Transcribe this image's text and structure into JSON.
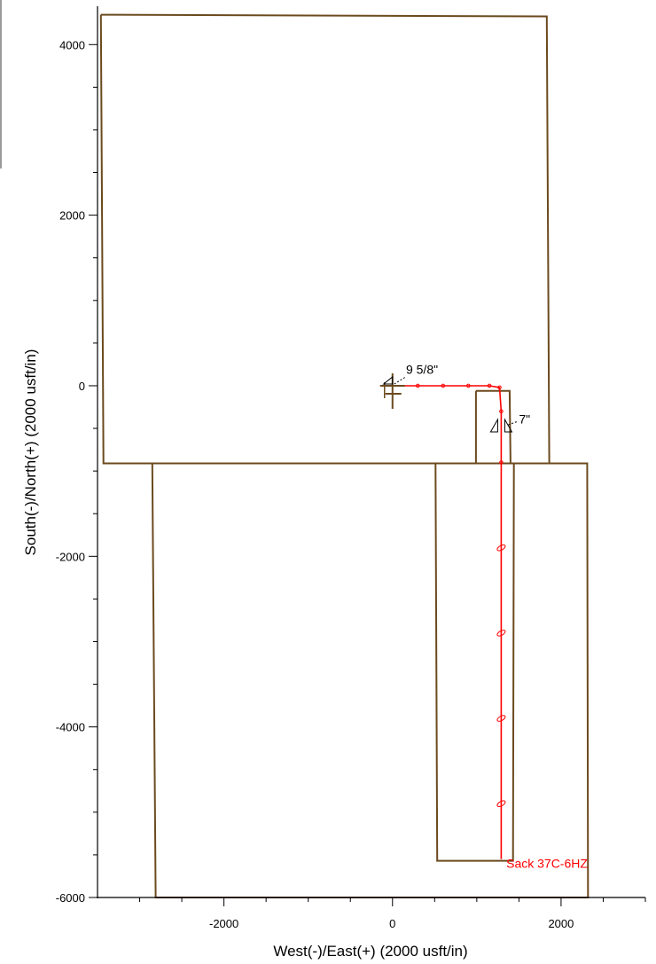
{
  "chart_data": {
    "type": "line",
    "title": "",
    "xlabel": "West(-)/East(+) (2000 usft/in)",
    "ylabel": "South(-)/North(+) (2000 usft/in)",
    "xlim": [
      -3500,
      3000
    ],
    "ylim": [
      -6000,
      4450
    ],
    "x_ticks": [
      -2000,
      0,
      2000
    ],
    "y_ticks": [
      -6000,
      -4000,
      -2000,
      0,
      2000,
      4000
    ],
    "colors": {
      "boundary": "#6b4a1e",
      "wellpath": "#ff0000",
      "annotation": "#000000"
    },
    "series": [
      {
        "values": [
          {
            "x": -3460,
            "y": 4350
          },
          {
            "x": 1830,
            "y": 4330
          },
          {
            "x": 1860,
            "y": -910
          },
          {
            "x": 2310,
            "y": -910
          },
          {
            "x": 2320,
            "y": -6000
          },
          {
            "x": -2810,
            "y": -6000
          },
          {
            "x": -2850,
            "y": -910
          },
          {
            "x": -3430,
            "y": -910
          },
          {
            "x": -3460,
            "y": 4350
          }
        ]
      },
      {
        "values": [
          {
            "x": -3430,
            "y": -910
          },
          {
            "x": 1850,
            "y": -910
          }
        ]
      },
      {
        "values": [
          {
            "x": 510,
            "y": -910
          },
          {
            "x": 530,
            "y": -5570
          },
          {
            "x": 1430,
            "y": -5570
          },
          {
            "x": 1440,
            "y": -910
          }
        ]
      },
      {
        "values": [
          {
            "x": 990,
            "y": -60
          },
          {
            "x": 1390,
            "y": -60
          },
          {
            "x": 1400,
            "y": -910
          },
          {
            "x": 990,
            "y": -910
          },
          {
            "x": 990,
            "y": -60
          }
        ]
      },
      {
        "values": [
          {
            "x": 0,
            "y": 0
          },
          {
            "x": 300,
            "y": 0
          },
          {
            "x": 600,
            "y": 0
          },
          {
            "x": 900,
            "y": 0
          },
          {
            "x": 1150,
            "y": 0
          },
          {
            "x": 1270,
            "y": -20
          },
          {
            "x": 1290,
            "y": -300
          },
          {
            "x": 1290,
            "y": -900
          },
          {
            "x": 1290,
            "y": -1900
          },
          {
            "x": 1290,
            "y": -2900
          },
          {
            "x": 1290,
            "y": -3900
          },
          {
            "x": 1290,
            "y": -4900
          },
          {
            "x": 1290,
            "y": -5550
          }
        ]
      }
    ],
    "annotations": [
      {
        "text": "9 5/8\"",
        "x": 160,
        "y": 190
      },
      {
        "text": "7\"",
        "x": 1500,
        "y": -390
      },
      {
        "text": "Sack 37C-6HZ",
        "x": 1350,
        "y": -5600
      }
    ]
  }
}
